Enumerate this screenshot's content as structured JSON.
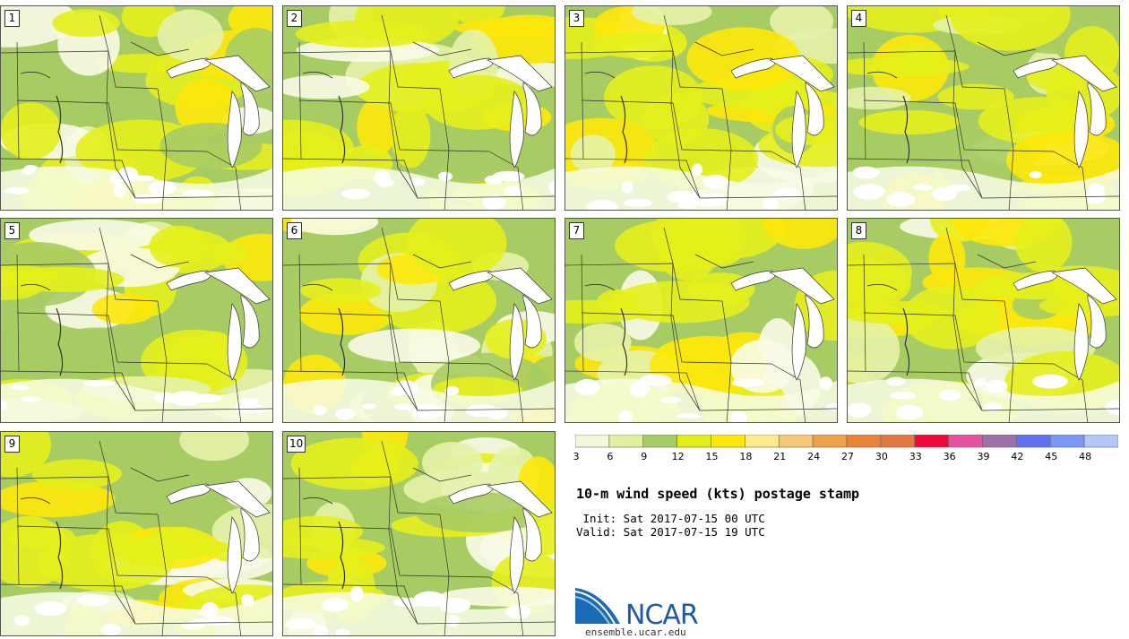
{
  "title": "10-m wind speed (kts) postage stamp",
  "init_text": " Init: Sat 2017-07-15 00 UTC",
  "valid_text": "Valid: Sat 2017-07-15 19 UTC",
  "site": "ensemble.ucar.edu",
  "logo_text": "NCAR",
  "legend": {
    "ticks": [
      "3",
      "6",
      "9",
      "12",
      "15",
      "18",
      "21",
      "24",
      "27",
      "30",
      "33",
      "36",
      "39",
      "42",
      "45",
      "48"
    ],
    "colors": [
      "#f2f7d8",
      "#e0f0a0",
      "#a6cc62",
      "#e3ee18",
      "#fde80a",
      "#fdea8a",
      "#f6c878",
      "#f0a048",
      "#e88438",
      "#e07840",
      "#f00a3c",
      "#e452a0",
      "#9e70a8",
      "#6070f0",
      "#7a98f8",
      "#b4c8f8"
    ]
  },
  "members": [
    "1",
    "2",
    "3",
    "4",
    "5",
    "6",
    "7",
    "8",
    "9",
    "10"
  ],
  "map_colors": {
    "calm": "#f8fbe8",
    "light": "#e4f2aa",
    "moderate": "#a8cc64",
    "strong": "#e4ef1c",
    "very_strong": "#fde80a",
    "white": "#ffffff"
  }
}
